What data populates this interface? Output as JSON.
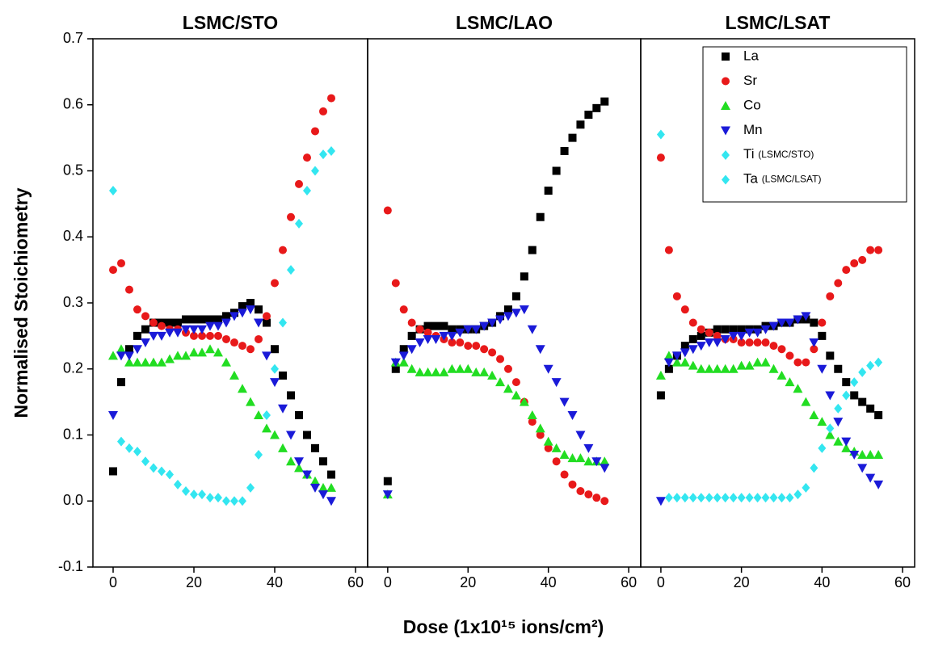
{
  "chart_data": [
    {
      "type": "scatter",
      "title": "LSMC/STO",
      "y_label": "Normalised Stoichiometry",
      "x": [
        0,
        2,
        4,
        6,
        8,
        10,
        12,
        14,
        16,
        18,
        20,
        22,
        24,
        26,
        28,
        30,
        32,
        34,
        36,
        38,
        40,
        42,
        44,
        46,
        48,
        50,
        52,
        54
      ],
      "xlim": [
        -5,
        63
      ],
      "xticks": [
        0,
        20,
        40,
        60
      ],
      "ylim": [
        -0.1,
        0.7
      ],
      "yticks": [
        -0.1,
        {
          "value": 0,
          "label": "0.0"
        },
        0.1,
        0.2,
        0.3,
        0.4,
        0.5,
        0.6,
        0.7
      ],
      "series": [
        {
          "name": "La",
          "color": "#000000",
          "marker": "square",
          "values": [
            0.045,
            0.18,
            0.23,
            0.25,
            0.26,
            0.27,
            0.27,
            0.27,
            0.27,
            0.275,
            0.275,
            0.275,
            0.275,
            0.275,
            0.28,
            0.285,
            0.295,
            0.3,
            0.29,
            0.27,
            0.23,
            0.19,
            0.16,
            0.13,
            0.1,
            0.08,
            0.06,
            0.04
          ]
        },
        {
          "name": "Sr",
          "color": "#e8191a",
          "marker": "circle",
          "values": [
            0.35,
            0.36,
            0.32,
            0.29,
            0.28,
            0.27,
            0.265,
            0.26,
            0.26,
            0.255,
            0.25,
            0.25,
            0.25,
            0.25,
            0.245,
            0.24,
            0.235,
            0.23,
            0.245,
            0.28,
            0.33,
            0.38,
            0.43,
            0.48,
            0.52,
            0.56,
            0.59,
            0.61
          ]
        },
        {
          "name": "Co",
          "color": "#22dd22",
          "marker": "triangle-up",
          "values": [
            0.22,
            0.23,
            0.21,
            0.21,
            0.21,
            0.21,
            0.21,
            0.215,
            0.22,
            0.22,
            0.225,
            0.225,
            0.23,
            0.225,
            0.21,
            0.19,
            0.17,
            0.15,
            0.13,
            0.11,
            0.1,
            0.08,
            0.06,
            0.05,
            0.04,
            0.03,
            0.02,
            0.02
          ]
        },
        {
          "name": "Mn",
          "color": "#1a1ad8",
          "marker": "triangle-down",
          "values": [
            0.13,
            0.22,
            0.22,
            0.23,
            0.24,
            0.25,
            0.25,
            0.255,
            0.255,
            0.26,
            0.26,
            0.26,
            0.265,
            0.265,
            0.27,
            0.28,
            0.285,
            0.29,
            0.27,
            0.22,
            0.18,
            0.14,
            0.1,
            0.06,
            0.04,
            0.02,
            0.01,
            0
          ]
        },
        {
          "name": "Ti (LSMC/STO)",
          "color": "#33e6f0",
          "marker": "diamond",
          "values": [
            0.47,
            0.09,
            0.08,
            0.075,
            0.06,
            0.05,
            0.045,
            0.04,
            0.025,
            0.015,
            0.01,
            0.01,
            0.005,
            0.005,
            0,
            0,
            0,
            0.02,
            0.07,
            0.13,
            0.2,
            0.27,
            0.35,
            0.42,
            0.47,
            0.5,
            0.525,
            0.53
          ]
        }
      ]
    },
    {
      "type": "scatter",
      "title": "LSMC/LAO",
      "x_label": "Dose (1x10¹⁵ ions/cm²)",
      "x": [
        0,
        2,
        4,
        6,
        8,
        10,
        12,
        14,
        16,
        18,
        20,
        22,
        24,
        26,
        28,
        30,
        32,
        34,
        36,
        38,
        40,
        42,
        44,
        46,
        48,
        50,
        52,
        54
      ],
      "xlim": [
        -5,
        63
      ],
      "xticks": [
        0,
        20,
        40,
        60
      ],
      "ylim": [
        -0.1,
        0.7
      ],
      "series": [
        {
          "name": "La",
          "color": "#000000",
          "marker": "square",
          "values": [
            0.03,
            0.2,
            0.23,
            0.25,
            0.26,
            0.265,
            0.265,
            0.265,
            0.26,
            0.26,
            0.26,
            0.26,
            0.265,
            0.27,
            0.28,
            0.29,
            0.31,
            0.34,
            0.38,
            0.43,
            0.47,
            0.5,
            0.53,
            0.55,
            0.57,
            0.585,
            0.595,
            0.605
          ]
        },
        {
          "name": "Sr",
          "color": "#e8191a",
          "marker": "circle",
          "values": [
            0.44,
            0.33,
            0.29,
            0.27,
            0.26,
            0.255,
            0.25,
            0.245,
            0.24,
            0.24,
            0.235,
            0.235,
            0.23,
            0.225,
            0.215,
            0.2,
            0.18,
            0.15,
            0.12,
            0.1,
            0.08,
            0.06,
            0.04,
            0.025,
            0.015,
            0.01,
            0.005,
            0
          ]
        },
        {
          "name": "Co",
          "color": "#22dd22",
          "marker": "triangle-up",
          "values": [
            0.01,
            0.21,
            0.21,
            0.2,
            0.195,
            0.195,
            0.195,
            0.195,
            0.2,
            0.2,
            0.2,
            0.195,
            0.195,
            0.19,
            0.18,
            0.17,
            0.16,
            0.15,
            0.13,
            0.11,
            0.09,
            0.08,
            0.07,
            0.065,
            0.065,
            0.06,
            0.06,
            0.06
          ]
        },
        {
          "name": "Mn",
          "color": "#1a1ad8",
          "marker": "triangle-down",
          "values": [
            0.01,
            0.21,
            0.22,
            0.23,
            0.24,
            0.245,
            0.245,
            0.25,
            0.25,
            0.255,
            0.26,
            0.26,
            0.265,
            0.27,
            0.275,
            0.28,
            0.285,
            0.29,
            0.26,
            0.23,
            0.2,
            0.18,
            0.15,
            0.13,
            0.1,
            0.08,
            0.06,
            0.05
          ]
        }
      ]
    },
    {
      "type": "scatter",
      "title": "LSMC/LSAT",
      "x": [
        0,
        2,
        4,
        6,
        8,
        10,
        12,
        14,
        16,
        18,
        20,
        22,
        24,
        26,
        28,
        30,
        32,
        34,
        36,
        38,
        40,
        42,
        44,
        46,
        48,
        50,
        52,
        54
      ],
      "xlim": [
        -5,
        63
      ],
      "xticks": [
        0,
        20,
        40,
        60
      ],
      "ylim": [
        -0.1,
        0.7
      ],
      "legend": "upper right",
      "series": [
        {
          "name": "La",
          "color": "#000000",
          "marker": "square",
          "values": [
            0.16,
            0.2,
            0.22,
            0.235,
            0.245,
            0.25,
            0.255,
            0.26,
            0.26,
            0.26,
            0.26,
            0.26,
            0.26,
            0.265,
            0.265,
            0.27,
            0.27,
            0.275,
            0.275,
            0.27,
            0.25,
            0.22,
            0.2,
            0.18,
            0.16,
            0.15,
            0.14,
            0.13
          ]
        },
        {
          "name": "Sr",
          "color": "#e8191a",
          "marker": "circle",
          "values": [
            0.52,
            0.38,
            0.31,
            0.29,
            0.27,
            0.26,
            0.255,
            0.25,
            0.245,
            0.245,
            0.24,
            0.24,
            0.24,
            0.24,
            0.235,
            0.23,
            0.22,
            0.21,
            0.21,
            0.23,
            0.27,
            0.31,
            0.33,
            0.35,
            0.36,
            0.365,
            0.38,
            0.38
          ]
        },
        {
          "name": "Co",
          "color": "#22dd22",
          "marker": "triangle-up",
          "values": [
            0.19,
            0.22,
            0.21,
            0.21,
            0.205,
            0.2,
            0.2,
            0.2,
            0.2,
            0.2,
            0.205,
            0.205,
            0.21,
            0.21,
            0.2,
            0.19,
            0.18,
            0.17,
            0.15,
            0.13,
            0.12,
            0.1,
            0.09,
            0.08,
            0.075,
            0.07,
            0.07,
            0.07
          ]
        },
        {
          "name": "Mn",
          "color": "#1a1ad8",
          "marker": "triangle-down",
          "values": [
            0,
            0.21,
            0.22,
            0.225,
            0.23,
            0.235,
            0.24,
            0.24,
            0.245,
            0.25,
            0.25,
            0.255,
            0.255,
            0.26,
            0.265,
            0.27,
            0.27,
            0.275,
            0.28,
            0.24,
            0.2,
            0.16,
            0.12,
            0.09,
            0.07,
            0.05,
            0.035,
            0.025
          ]
        },
        {
          "name": "Ta (LSMC/LSAT)",
          "color": "#33e6f0",
          "marker": "diamond",
          "values": [
            0.555,
            0.005,
            0.005,
            0.005,
            0.005,
            0.005,
            0.005,
            0.005,
            0.005,
            0.005,
            0.005,
            0.005,
            0.005,
            0.005,
            0.005,
            0.005,
            0.005,
            0.01,
            0.02,
            0.05,
            0.08,
            0.11,
            0.14,
            0.16,
            0.18,
            0.195,
            0.205,
            0.21
          ]
        }
      ]
    }
  ]
}
